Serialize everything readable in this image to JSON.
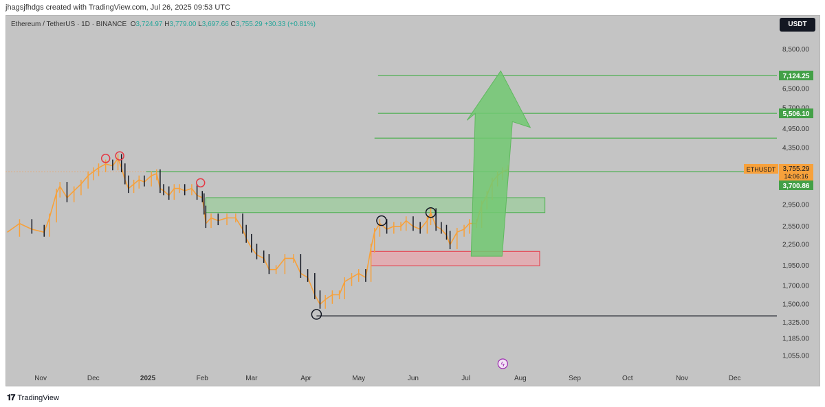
{
  "header": {
    "credit": "jhagsjfhdgs created with TradingView.com, Jul 26, 2025 09:53 UTC",
    "symbol": "Ethereum / TetherUS · 1D · BINANCE",
    "o_label": "O",
    "o_value": "3,724.97",
    "h_label": "H",
    "h_value": "3,779.00",
    "l_label": "L",
    "l_value": "3,697.66",
    "c_label": "C",
    "c_value": "3,755.29",
    "change": "+30.33 (+0.81%)",
    "currency": "USDT"
  },
  "footer": {
    "brand": "TradingView"
  },
  "colors": {
    "background": "#c4c4c4",
    "price_line": "#f7a13b",
    "bull_candle": "#f7a13b",
    "bear_candle": "#131722",
    "level_line": "#4caf50",
    "resistance_zone": "#8fd18f",
    "support_zone": "#f3a0a8",
    "target_arrow": "#72c972"
  },
  "chart_data": {
    "type": "line",
    "title": "",
    "symbol": "ETHUSDT",
    "scale": "log",
    "ylim": [
      1000,
      9000
    ],
    "y_ticks": [
      "8,500.00",
      "7,200.00",
      "6,500.00",
      "5,700.00",
      "4,950.00",
      "4,350.00",
      "3,650.00",
      "2,950.00",
      "2,550.00",
      "2,250.00",
      "1,950.00",
      "1,700.00",
      "1,500.00",
      "1,325.00",
      "1,185.00",
      "1,055.00"
    ],
    "y_tick_values": [
      8500,
      7200,
      6500,
      5700,
      4950,
      4350,
      3650,
      2950,
      2550,
      2250,
      1950,
      1700,
      1500,
      1325,
      1185,
      1055
    ],
    "x_ticks": [
      "Nov",
      "Dec",
      "2025",
      "Feb",
      "Mar",
      "Apr",
      "May",
      "Jun",
      "Jul",
      "Aug",
      "Sep",
      "Oct",
      "Nov",
      "Dec"
    ],
    "x_tick_dates": [
      "2024-11-01",
      "2024-12-01",
      "2025-01-01",
      "2025-02-01",
      "2025-03-01",
      "2025-04-01",
      "2025-05-01",
      "2025-06-01",
      "2025-07-01",
      "2025-08-01",
      "2025-09-01",
      "2025-10-01",
      "2025-11-01",
      "2025-12-01"
    ],
    "series": [
      {
        "x": [
          "2024-10-13",
          "2024-10-20",
          "2024-10-27",
          "2024-11-03",
          "2024-11-06",
          "2024-11-10",
          "2024-11-12",
          "2024-11-16",
          "2024-11-20",
          "2024-11-24",
          "2024-11-28",
          "2024-12-01",
          "2024-12-04",
          "2024-12-08",
          "2024-12-12",
          "2024-12-15",
          "2024-12-17",
          "2024-12-19",
          "2024-12-21",
          "2024-12-24",
          "2024-12-27",
          "2024-12-30",
          "2025-01-03",
          "2025-01-06",
          "2025-01-08",
          "2025-01-10",
          "2025-01-13",
          "2025-01-16",
          "2025-01-19",
          "2025-01-22",
          "2025-01-26",
          "2025-01-29",
          "2025-02-01",
          "2025-02-02",
          "2025-02-03",
          "2025-02-06",
          "2025-02-10",
          "2025-02-15",
          "2025-02-20",
          "2025-02-24",
          "2025-02-26",
          "2025-03-01",
          "2025-03-04",
          "2025-03-08",
          "2025-03-11",
          "2025-03-15",
          "2025-03-20",
          "2025-03-25",
          "2025-03-29",
          "2025-04-02",
          "2025-04-06",
          "2025-04-09",
          "2025-04-12",
          "2025-04-16",
          "2025-04-20",
          "2025-04-23",
          "2025-04-27",
          "2025-05-01",
          "2025-05-05",
          "2025-05-08",
          "2025-05-10",
          "2025-05-13",
          "2025-05-17",
          "2025-05-21",
          "2025-05-25",
          "2025-05-28",
          "2025-06-01",
          "2025-06-05",
          "2025-06-09",
          "2025-06-11",
          "2025-06-14",
          "2025-06-17",
          "2025-06-20",
          "2025-06-22",
          "2025-06-26",
          "2025-06-30",
          "2025-07-03",
          "2025-07-07",
          "2025-07-10",
          "2025-07-13",
          "2025-07-16",
          "2025-07-19",
          "2025-07-22",
          "2025-07-25"
        ],
        "y": [
          2450,
          2600,
          2500,
          2450,
          2700,
          3200,
          3350,
          3100,
          3250,
          3400,
          3600,
          3700,
          3800,
          3900,
          3850,
          4050,
          3800,
          3500,
          3300,
          3400,
          3500,
          3450,
          3600,
          3650,
          3300,
          3250,
          3150,
          3300,
          3300,
          3250,
          3300,
          3150,
          3100,
          2850,
          2600,
          2700,
          2650,
          2700,
          2700,
          2500,
          2350,
          2200,
          2100,
          2050,
          1900,
          1900,
          2050,
          2050,
          1850,
          1800,
          1600,
          1500,
          1550,
          1600,
          1600,
          1750,
          1800,
          1850,
          1800,
          2200,
          2450,
          2600,
          2500,
          2550,
          2550,
          2650,
          2550,
          2500,
          2650,
          2800,
          2550,
          2500,
          2400,
          2250,
          2450,
          2500,
          2600,
          2600,
          2950,
          3150,
          3450,
          3600,
          3700,
          3755
        ]
      }
    ],
    "levels": [
      {
        "label": "7,124.25",
        "value": 7124.25,
        "from": "2025-05-12"
      },
      {
        "label": "5,506.10",
        "value": 5506.1,
        "from": "2025-05-12"
      },
      {
        "value": 4650,
        "from": "2025-05-10"
      },
      {
        "value": 3700.86,
        "from": "2024-12-31"
      }
    ],
    "zones": [
      {
        "kind": "resistance",
        "top": 3100,
        "bottom": 2800,
        "from": "2025-02-03",
        "to": "2025-08-15"
      },
      {
        "kind": "support",
        "top": 2150,
        "bottom": 1950,
        "from": "2025-05-08",
        "to": "2025-08-12"
      }
    ],
    "support_line": {
      "value": 1385,
      "from": "2025-04-07"
    },
    "markers": [
      {
        "date": "2024-12-08",
        "value": 4050,
        "color": "red"
      },
      {
        "date": "2024-12-16",
        "value": 4120,
        "color": "red"
      },
      {
        "date": "2025-01-31",
        "value": 3430,
        "color": "red"
      },
      {
        "date": "2025-04-07",
        "value": 1400,
        "color": "black"
      },
      {
        "date": "2025-05-14",
        "value": 2650,
        "color": "black"
      },
      {
        "date": "2025-06-11",
        "value": 2800,
        "color": "black"
      }
    ],
    "arrow": {
      "from_date": "2025-07-04",
      "from_value": 2080,
      "to_date": "2025-07-22",
      "to_value": 7350
    },
    "price_label": {
      "symbol": "ETHUSDT",
      "price": "3,755.29",
      "countdown": "14:06:16",
      "value": 3755.29
    },
    "level_tags": [
      {
        "label": "7,124.25",
        "value": 7124.25
      },
      {
        "label": "5,506.10",
        "value": 5506.1
      },
      {
        "label": "3,700.86",
        "value": 3700.86
      }
    ]
  }
}
